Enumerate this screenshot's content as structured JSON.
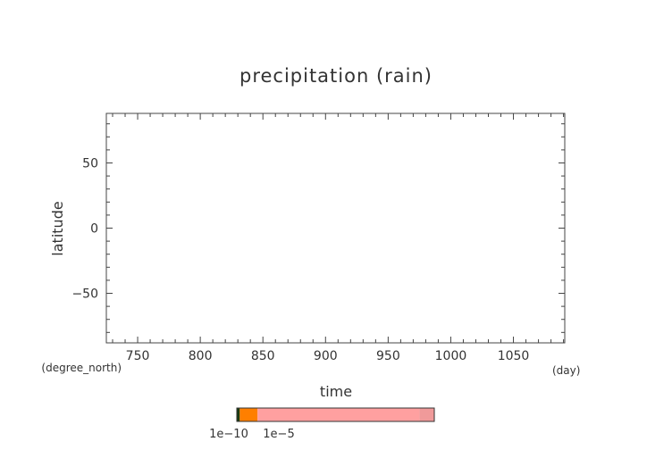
{
  "chart_data": {
    "type": "heatmap",
    "title": "precipitation (rain)",
    "xlabel": "time",
    "xunits": "(day)",
    "ylabel": "latitude",
    "yunits": "(degree_north)",
    "xlim": [
      725,
      1091
    ],
    "ylim": [
      -88,
      88
    ],
    "xticks": [
      750,
      800,
      850,
      900,
      950,
      1000,
      1050
    ],
    "yticks": [
      50,
      0,
      -50
    ],
    "grid": false,
    "values": [],
    "colorbar": {
      "labels": [
        "1e−10",
        "1e−5"
      ],
      "segments": [
        {
          "color": "#1a3a10",
          "fraction": 0.015
        },
        {
          "color": "#ff7f00",
          "fraction": 0.09
        },
        {
          "color": "#ffa0a0",
          "fraction": 0.82
        },
        {
          "color": "#f09a9a",
          "fraction": 0.075
        }
      ]
    }
  }
}
